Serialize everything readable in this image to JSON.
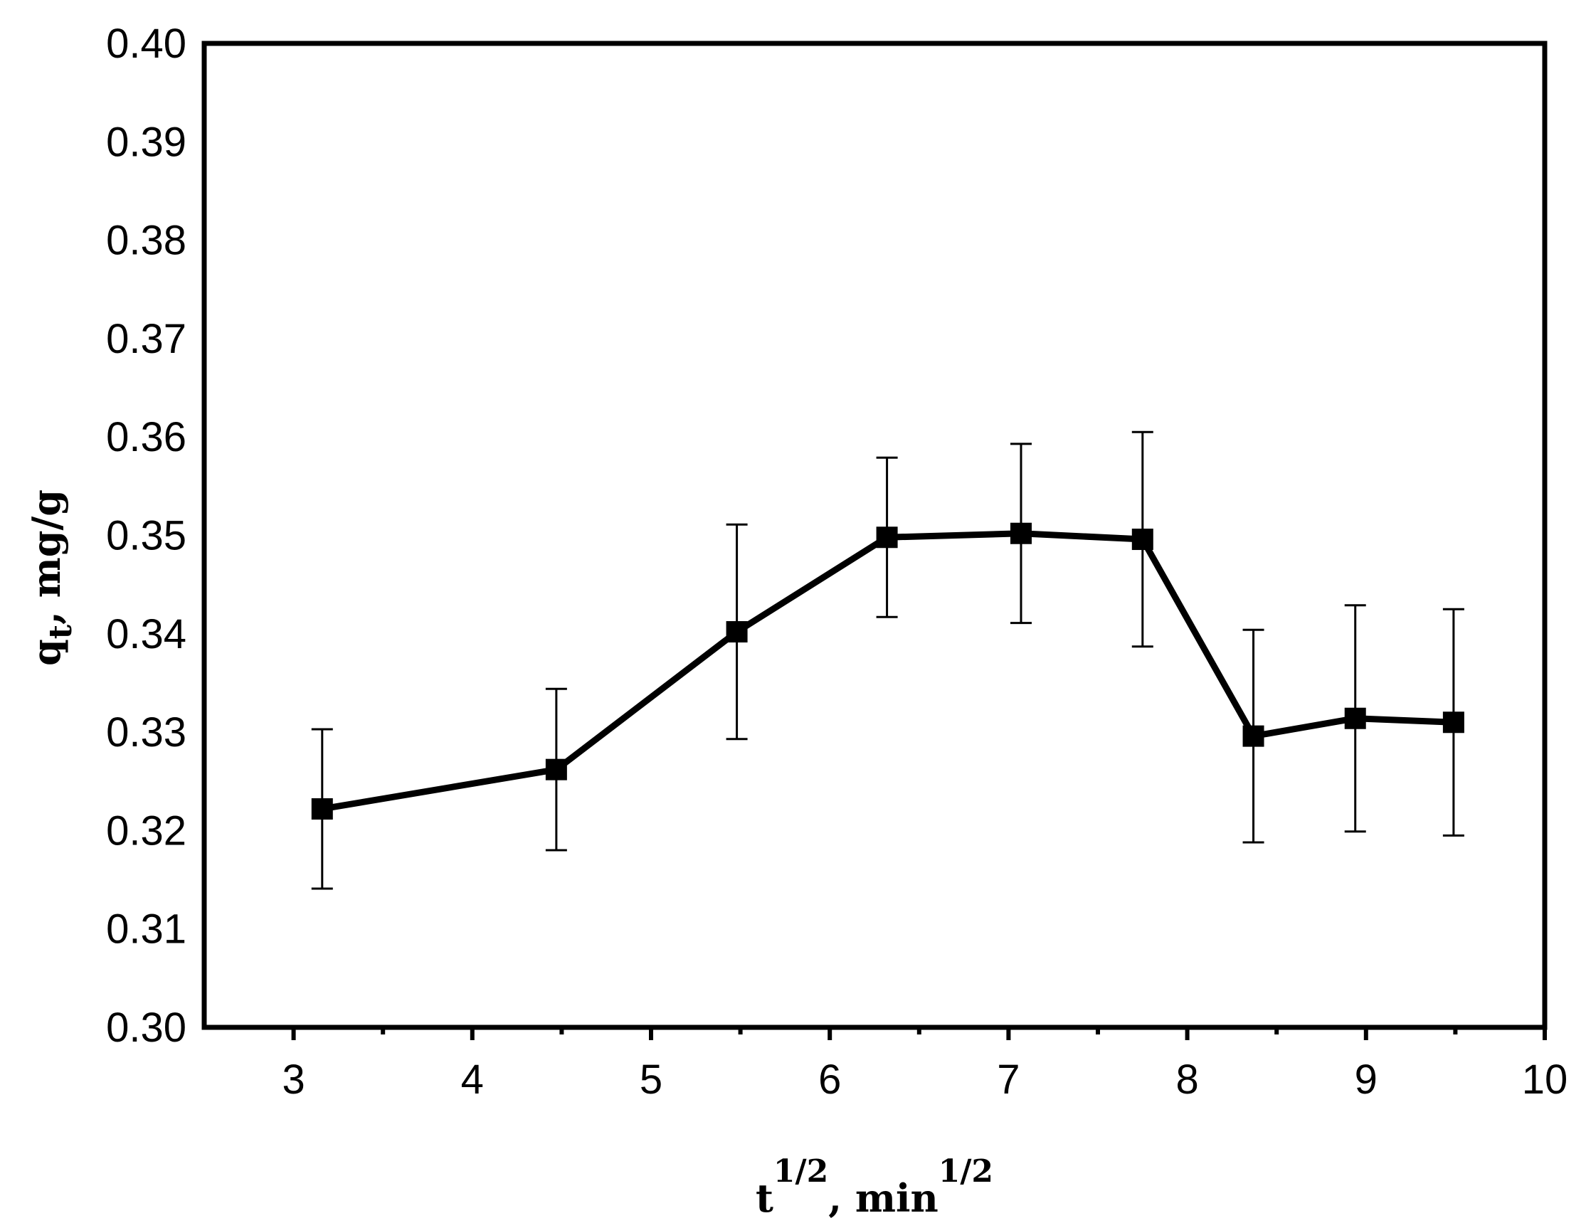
{
  "chart_data": {
    "type": "line",
    "title": "",
    "xlabel": {
      "base": "t",
      "base_sup": "1/2",
      "unit": ", min",
      "unit_sup": "1/2"
    },
    "ylabel": {
      "base": "q",
      "sub": "t",
      "unit": ", mg/g"
    },
    "xlim": [
      2.5,
      10
    ],
    "ylim": [
      0.3,
      0.4
    ],
    "xticks": [
      "3",
      "4",
      "5",
      "6",
      "7",
      "8",
      "9",
      "10"
    ],
    "yticks": [
      "0.30",
      "0.31",
      "0.32",
      "0.33",
      "0.34",
      "0.35",
      "0.36",
      "0.37",
      "0.38",
      "0.39",
      "0.40"
    ],
    "grid": false,
    "legend": "none",
    "marker": "square",
    "color": "#000000",
    "series": [
      {
        "x": [
          3.16,
          4.47,
          5.48,
          6.32,
          7.07,
          7.75,
          8.37,
          8.94,
          9.49
        ],
        "y": [
          0.3222,
          0.3262,
          0.3402,
          0.3498,
          0.3502,
          0.3496,
          0.3296,
          0.3314,
          0.331
        ],
        "y_err": [
          0.0081,
          0.0082,
          0.0109,
          0.0081,
          0.0091,
          0.0109,
          0.0108,
          0.0115,
          0.0115
        ]
      }
    ]
  }
}
